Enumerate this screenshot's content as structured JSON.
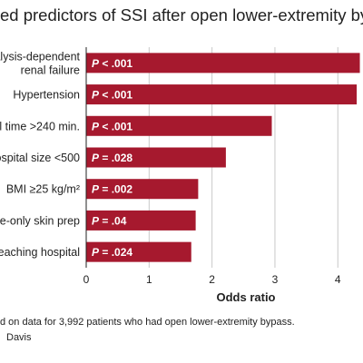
{
  "title": "ed predictors of SSI after open lower-extremity bypa",
  "footnote": "d on data for 3,992 patients who had open lower-extremity bypass.",
  "credit": "Davis",
  "colors": {
    "bar": "#a6192e",
    "bar_text": "#ffffff",
    "axis": "#222222",
    "grid": "#c8c8c8"
  },
  "chart_data": {
    "type": "bar",
    "orientation": "horizontal",
    "categories": [
      [
        "alysis-dependent",
        "renal failure"
      ],
      [
        "Hypertension"
      ],
      [
        "l time >240 min."
      ],
      [
        "ospital size <500"
      ],
      [
        "BMI ≥25 kg/m²"
      ],
      [
        "ne-only skin prep"
      ],
      [
        "eaching hospital"
      ]
    ],
    "values": [
      4.35,
      4.3,
      2.95,
      2.22,
      1.78,
      1.74,
      1.67
    ],
    "bar_labels": [
      "P < .001",
      "P < .001",
      "P < .001",
      "P = .028",
      "P = .002",
      "P = .04",
      "P = .024"
    ],
    "xlabel": "Odds ratio",
    "ylabel": "",
    "xlim": [
      0,
      4.4
    ],
    "xticks": [
      "0",
      "1",
      "2",
      "3",
      "4"
    ],
    "grid": true
  }
}
